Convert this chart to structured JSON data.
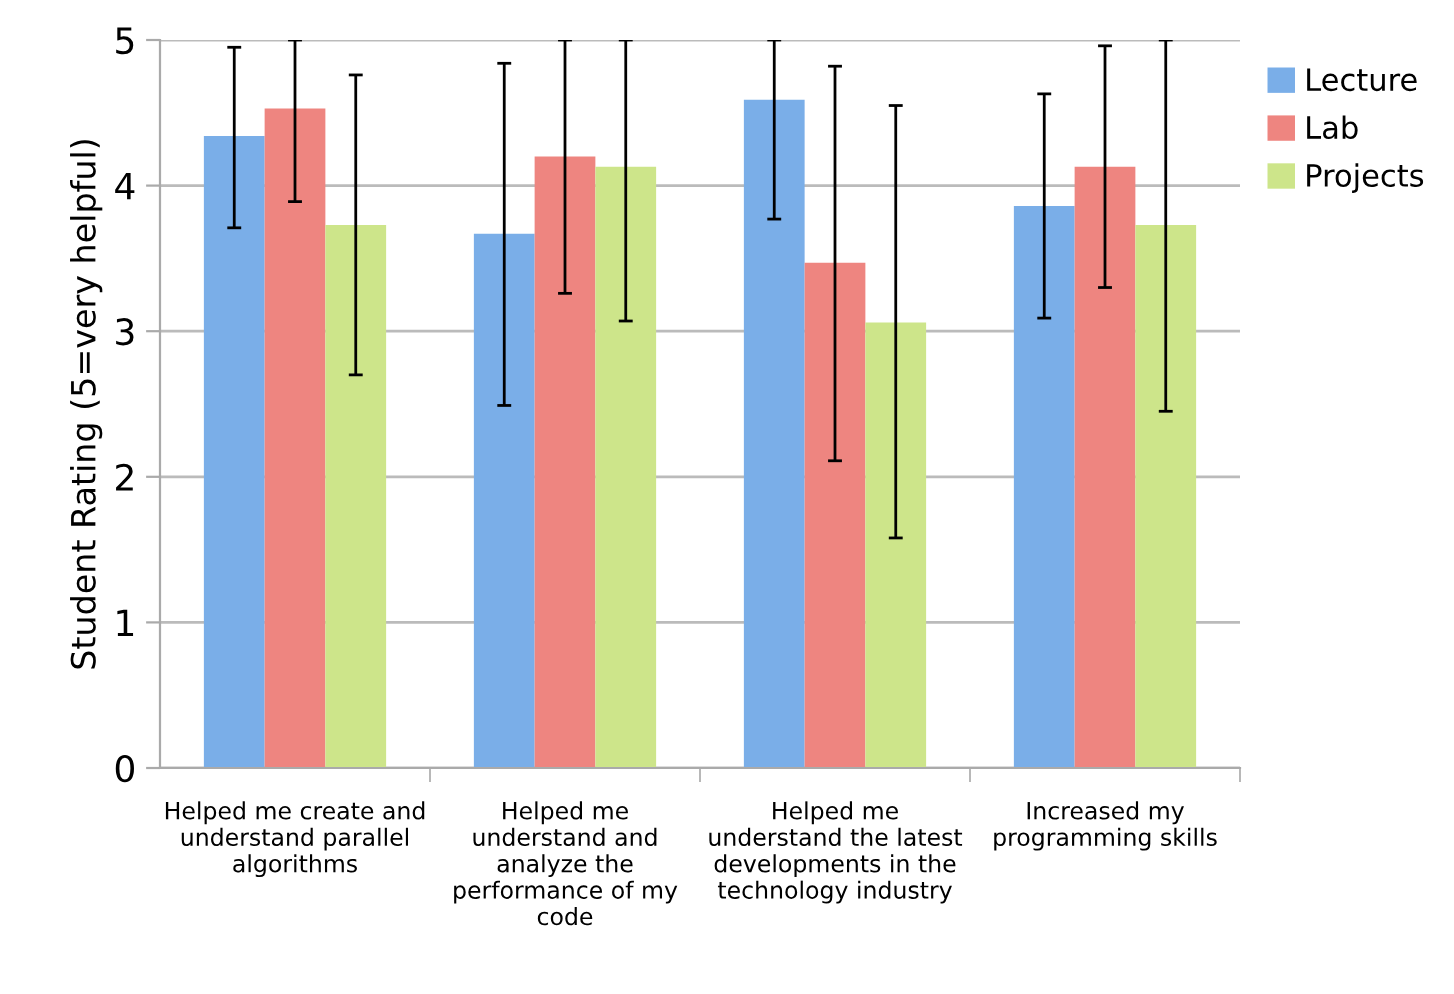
{
  "chart_data": {
    "type": "bar",
    "ylabel": "Student Rating (5=very helpful)",
    "categories": [
      "Helped me create and\nunderstand parallel\nalgorithms",
      "Helped me\nunderstand and\nanalyze the\nperformance of my\ncode",
      "Helped me\nunderstand the latest\ndevelopments in the\ntechnology industry",
      "Increased my\nprogramming skills"
    ],
    "series": [
      {
        "name": "Lecture",
        "color": "#7aaee8",
        "values": [
          4.34,
          3.67,
          4.59,
          3.86
        ],
        "errors": [
          [
            3.71,
            4.95
          ],
          [
            2.49,
            4.84
          ],
          [
            3.77,
            5
          ],
          [
            3.09,
            4.63
          ]
        ]
      },
      {
        "name": "Lab",
        "color": "#ee8580",
        "values": [
          4.53,
          4.2,
          3.47,
          4.13
        ],
        "errors": [
          [
            3.89,
            5
          ],
          [
            3.26,
            5
          ],
          [
            2.11,
            4.82
          ],
          [
            3.3,
            4.96
          ]
        ]
      },
      {
        "name": "Projects",
        "color": "#cde58a",
        "values": [
          3.73,
          4.13,
          3.06,
          3.73
        ],
        "errors": [
          [
            2.7,
            4.76
          ],
          [
            3.07,
            5
          ],
          [
            1.58,
            4.55
          ],
          [
            2.45,
            5
          ]
        ]
      }
    ],
    "ylim": [
      0,
      5
    ],
    "yticks": [
      0,
      1,
      2,
      3,
      4,
      5
    ],
    "grid": "y",
    "legend": "top right"
  }
}
